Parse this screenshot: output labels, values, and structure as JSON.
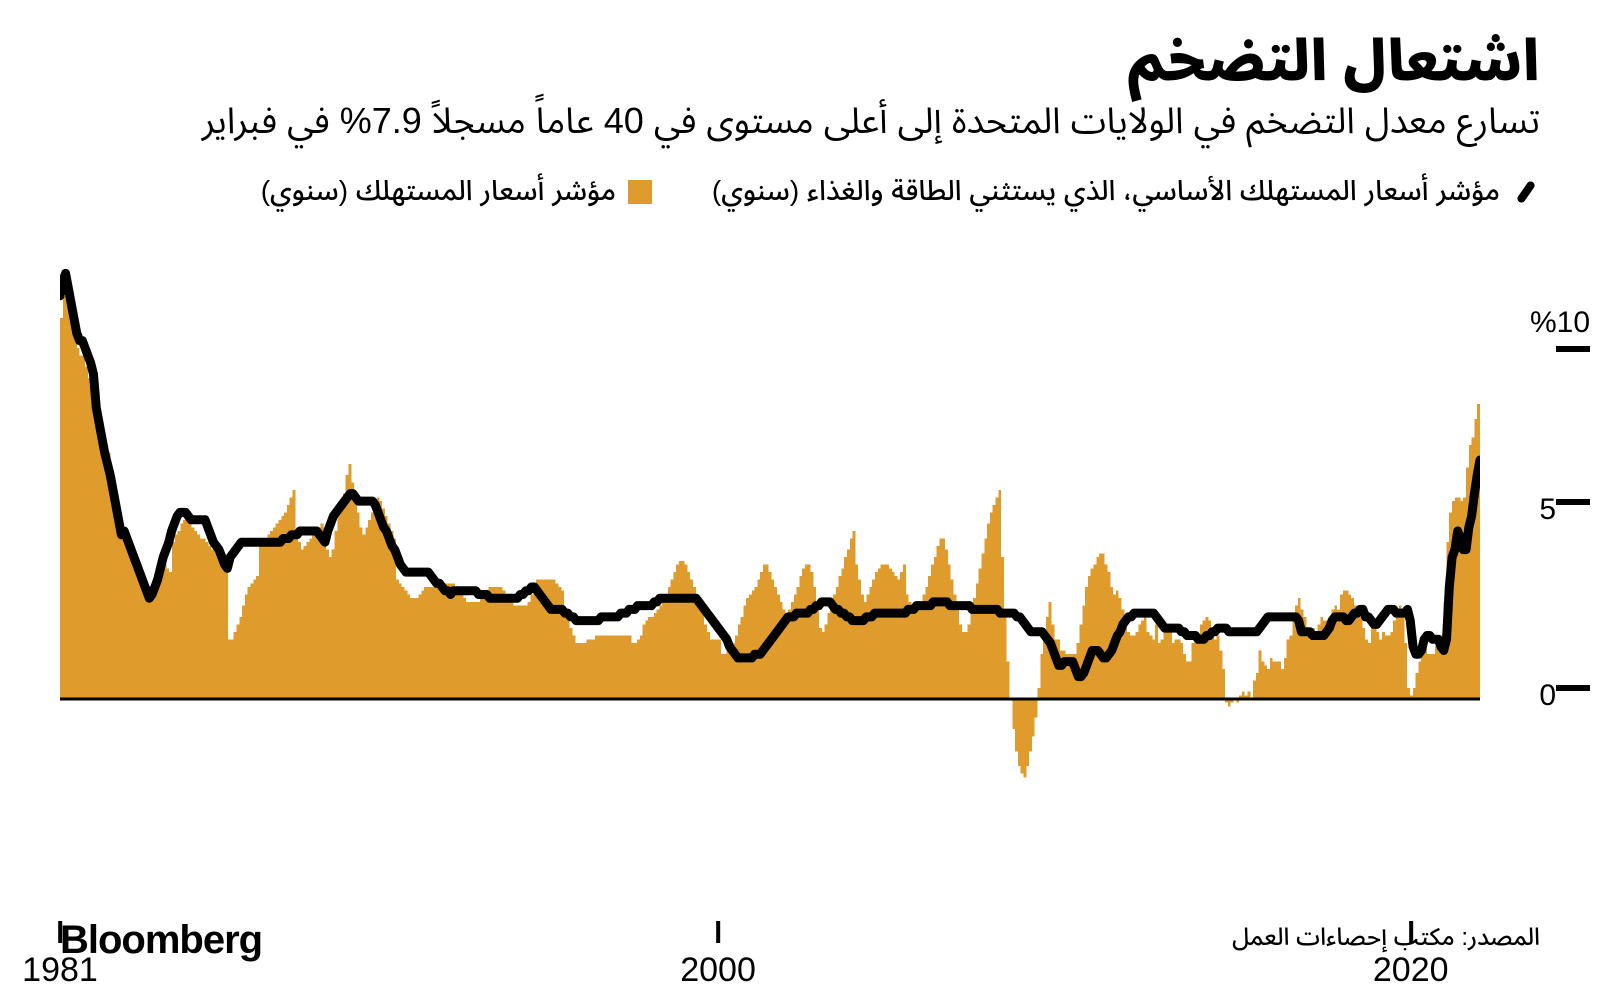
{
  "title": "اشتعال التضخم",
  "subtitle": "تسارع معدل التضخم في الولايات المتحدة إلى أعلى مستوى في 40 عاماً مسجلاً 7.9% في فبراير",
  "legend": {
    "series_line": "مؤشر أسعار المستهلك الأساسي، الذي يستثني الطاقة والغذاء (سنوي)",
    "series_bar": "مؤشر أسعار المستهلك (سنوي)"
  },
  "brand": "Bloomberg",
  "source": "المصدر: مكتب إحصاءات العمل",
  "chart": {
    "type": "bar+line",
    "x_start_year": 1981,
    "x_end_year": 2022,
    "x_ticks": [
      {
        "year": 1981,
        "label": "1981"
      },
      {
        "year": 2000,
        "label": "2000"
      },
      {
        "year": 2020,
        "label": "2020"
      }
    ],
    "ylim": [
      -3,
      12
    ],
    "y_ticks": [
      {
        "v": 10,
        "label": "%10"
      },
      {
        "v": 5,
        "label": "5"
      },
      {
        "v": 0,
        "label": "0"
      }
    ],
    "colors": {
      "bar": "#e09b2d",
      "line": "#000000",
      "baseline": "#000000",
      "background": "#ffffff"
    },
    "line_width": 9,
    "bar_gap_ratio": 0.0,
    "cpi_bars": [
      10.2,
      10.8,
      11.3,
      11.0,
      10.5,
      10.0,
      9.4,
      9.2,
      9.2,
      8.9,
      8.6,
      8.4,
      8.3,
      7.5,
      7.2,
      6.9,
      6.7,
      6.6,
      6.2,
      5.8,
      5.4,
      5.0,
      4.5,
      4.2,
      4.0,
      3.8,
      3.6,
      3.5,
      3.3,
      3.2,
      3.1,
      3.0,
      2.9,
      2.8,
      3.0,
      3.2,
      3.4,
      3.6,
      3.5,
      3.4,
      4.2,
      4.4,
      4.5,
      4.7,
      4.8,
      4.9,
      4.7,
      4.6,
      4.5,
      4.4,
      4.3,
      4.3,
      4.2,
      4.1,
      4.0,
      4.0,
      3.9,
      3.7,
      3.6,
      3.5,
      1.6,
      1.6,
      1.8,
      2.0,
      2.2,
      2.5,
      2.8,
      3.0,
      3.1,
      3.2,
      3.3,
      4.1,
      4.2,
      4.3,
      4.4,
      4.5,
      4.6,
      4.7,
      4.8,
      4.9,
      5.0,
      5.2,
      5.4,
      5.6,
      4.4,
      4.2,
      4.0,
      4.1,
      4.2,
      4.3,
      4.4,
      4.5,
      4.6,
      4.7,
      4.6,
      4.0,
      3.8,
      4.0,
      4.5,
      5.0,
      5.2,
      5.5,
      6.0,
      6.3,
      5.8,
      5.4,
      5.0,
      4.6,
      4.4,
      4.6,
      4.8,
      5.0,
      5.2,
      5.4,
      5.3,
      5.1,
      4.9,
      4.7,
      4.5,
      4.3,
      3.2,
      3.1,
      3.0,
      2.9,
      2.8,
      2.7,
      2.7,
      2.7,
      2.8,
      2.9,
      3.0,
      3.0,
      3.0,
      3.0,
      3.0,
      3.0,
      3.0,
      3.1,
      3.1,
      3.1,
      3.1,
      3.0,
      2.9,
      2.8,
      2.7,
      2.6,
      2.6,
      2.6,
      2.6,
      2.6,
      2.7,
      2.8,
      2.9,
      3.0,
      3.0,
      3.0,
      3.0,
      3.0,
      2.9,
      2.8,
      2.7,
      2.6,
      2.5,
      2.5,
      2.5,
      2.5,
      2.5,
      2.6,
      2.8,
      3.0,
      3.2,
      3.2,
      3.2,
      3.2,
      3.2,
      3.2,
      3.2,
      3.1,
      3.0,
      2.9,
      2.4,
      2.2,
      1.9,
      1.7,
      1.5,
      1.5,
      1.5,
      1.5,
      1.6,
      1.6,
      1.6,
      1.7,
      1.7,
      1.7,
      1.7,
      1.7,
      1.7,
      1.7,
      1.7,
      1.7,
      1.7,
      1.7,
      1.7,
      1.7,
      1.5,
      1.5,
      1.6,
      1.7,
      2.0,
      2.1,
      2.2,
      2.2,
      2.3,
      2.4,
      2.5,
      2.6,
      2.8,
      3.0,
      3.2,
      3.4,
      3.6,
      3.7,
      3.7,
      3.6,
      3.4,
      3.2,
      3.0,
      2.8,
      2.4,
      2.3,
      2.0,
      1.8,
      1.6,
      1.6,
      1.6,
      1.6,
      1.2,
      1.2,
      1.3,
      1.4,
      1.5,
      1.7,
      2.0,
      2.2,
      2.5,
      2.7,
      2.8,
      2.9,
      3.0,
      3.2,
      3.4,
      3.6,
      3.6,
      3.4,
      3.2,
      3.0,
      2.8,
      2.6,
      2.4,
      2.2,
      2.4,
      2.6,
      2.8,
      3.0,
      3.3,
      3.5,
      3.6,
      3.6,
      3.4,
      3.0,
      2.5,
      1.9,
      1.8,
      2.0,
      2.3,
      2.5,
      2.8,
      3.0,
      3.3,
      3.5,
      3.8,
      4.0,
      4.3,
      4.5,
      3.6,
      3.2,
      2.8,
      2.6,
      2.8,
      3.0,
      3.2,
      3.4,
      3.5,
      3.6,
      3.6,
      3.6,
      3.5,
      3.4,
      3.3,
      3.2,
      3.4,
      3.6,
      2.8,
      2.6,
      2.5,
      2.5,
      2.5,
      2.6,
      2.8,
      3.0,
      3.3,
      3.6,
      3.8,
      4.1,
      4.3,
      4.3,
      4.0,
      3.6,
      3.2,
      2.8,
      2.4,
      2.0,
      1.8,
      1.8,
      2.0,
      2.3,
      2.7,
      3.1,
      3.5,
      3.9,
      4.3,
      4.7,
      5.0,
      5.2,
      5.4,
      5.6,
      3.8,
      2.4,
      1.0,
      0.0,
      -0.8,
      -1.4,
      -1.8,
      -2.0,
      -2.1,
      -1.8,
      -1.4,
      -1.0,
      -0.5,
      0.3,
      1.2,
      1.8,
      2.2,
      2.6,
      2.0,
      1.6,
      1.6,
      1.3,
      1.3,
      1.2,
      1.2,
      1.2,
      1.2,
      1.5,
      2.0,
      2.5,
      3.0,
      3.3,
      3.5,
      3.6,
      3.8,
      3.9,
      3.9,
      3.6,
      3.4,
      3.0,
      2.8,
      2.9,
      2.7,
      2.4,
      2.0,
      1.8,
      1.7,
      1.7,
      1.8,
      2.0,
      2.1,
      2.2,
      1.8,
      1.7,
      1.6,
      2.0,
      1.5,
      1.6,
      1.8,
      2.0,
      1.9,
      1.5,
      1.6,
      1.6,
      1.5,
      1.2,
      1.0,
      1.0,
      1.5,
      1.6,
      1.7,
      2.0,
      2.1,
      2.2,
      2.1,
      1.7,
      1.6,
      1.7,
      1.3,
      0.8,
      -0.1,
      -0.2,
      -0.1,
      0.0,
      -0.1,
      0.1,
      0.2,
      0.1,
      0.2,
      0.0,
      0.5,
      0.7,
      1.3,
      1.0,
      0.9,
      0.8,
      1.1,
      1.0,
      1.0,
      1.0,
      0.8,
      1.1,
      1.6,
      1.7,
      2.1,
      2.5,
      2.7,
      2.4,
      2.2,
      1.9,
      1.6,
      1.9,
      1.7,
      2.0,
      2.2,
      2.1,
      2.1,
      2.2,
      2.4,
      2.5,
      2.4,
      2.8,
      2.9,
      2.9,
      2.8,
      2.7,
      2.5,
      2.3,
      2.2,
      1.9,
      1.6,
      1.5,
      2.0,
      1.9,
      1.8,
      1.6,
      1.8,
      1.7,
      1.7,
      1.8,
      2.1,
      2.3,
      2.5,
      2.3,
      1.5,
      0.3,
      0.1,
      0.3,
      0.7,
      1.0,
      1.3,
      1.4,
      1.2,
      1.2,
      1.2,
      1.4,
      1.4,
      1.7,
      2.6,
      4.2,
      5.0,
      5.3,
      5.4,
      5.4,
      5.3,
      5.4,
      6.2,
      6.8,
      7.0,
      7.5,
      7.9
    ],
    "core_line": [
      10.8,
      11.2,
      11.4,
      11.0,
      10.6,
      10.2,
      9.8,
      9.6,
      9.6,
      9.4,
      9.2,
      9.0,
      8.7,
      7.8,
      7.4,
      7.0,
      6.6,
      6.3,
      6.0,
      5.6,
      5.2,
      4.8,
      4.4,
      4.5,
      4.3,
      4.1,
      3.9,
      3.7,
      3.5,
      3.3,
      3.1,
      2.9,
      2.7,
      2.8,
      3.0,
      3.2,
      3.5,
      3.8,
      4.0,
      4.2,
      4.5,
      4.7,
      4.9,
      5.0,
      5.0,
      5.0,
      4.9,
      4.8,
      4.8,
      4.8,
      4.8,
      4.8,
      4.8,
      4.6,
      4.4,
      4.2,
      4.1,
      4.0,
      3.8,
      3.6,
      3.5,
      3.8,
      3.9,
      4.0,
      4.1,
      4.2,
      4.2,
      4.2,
      4.2,
      4.2,
      4.2,
      4.2,
      4.2,
      4.2,
      4.2,
      4.2,
      4.2,
      4.2,
      4.2,
      4.2,
      4.3,
      4.3,
      4.3,
      4.4,
      4.4,
      4.4,
      4.5,
      4.5,
      4.5,
      4.5,
      4.5,
      4.5,
      4.5,
      4.4,
      4.3,
      4.2,
      4.5,
      4.7,
      4.9,
      5.0,
      5.1,
      5.2,
      5.3,
      5.4,
      5.5,
      5.5,
      5.4,
      5.3,
      5.3,
      5.3,
      5.3,
      5.3,
      5.3,
      5.2,
      5.0,
      4.8,
      4.6,
      4.5,
      4.3,
      4.1,
      4.0,
      3.8,
      3.6,
      3.5,
      3.4,
      3.4,
      3.4,
      3.4,
      3.4,
      3.4,
      3.4,
      3.4,
      3.4,
      3.3,
      3.2,
      3.1,
      3.1,
      3.0,
      2.9,
      2.9,
      2.8,
      2.9,
      2.9,
      2.9,
      2.9,
      2.9,
      2.9,
      2.9,
      2.9,
      2.9,
      2.8,
      2.8,
      2.8,
      2.8,
      2.7,
      2.7,
      2.7,
      2.7,
      2.7,
      2.7,
      2.7,
      2.7,
      2.7,
      2.7,
      2.7,
      2.8,
      2.8,
      2.9,
      2.9,
      3.0,
      3.0,
      2.9,
      2.8,
      2.7,
      2.6,
      2.5,
      2.4,
      2.4,
      2.4,
      2.4,
      2.4,
      2.3,
      2.3,
      2.2,
      2.2,
      2.1,
      2.1,
      2.1,
      2.1,
      2.1,
      2.1,
      2.1,
      2.1,
      2.1,
      2.2,
      2.2,
      2.2,
      2.2,
      2.2,
      2.2,
      2.2,
      2.3,
      2.3,
      2.3,
      2.4,
      2.4,
      2.4,
      2.5,
      2.5,
      2.5,
      2.5,
      2.5,
      2.5,
      2.6,
      2.6,
      2.7,
      2.7,
      2.7,
      2.7,
      2.7,
      2.7,
      2.7,
      2.7,
      2.7,
      2.7,
      2.7,
      2.7,
      2.7,
      2.7,
      2.6,
      2.5,
      2.4,
      2.3,
      2.2,
      2.1,
      2.0,
      1.9,
      1.8,
      1.7,
      1.6,
      1.4,
      1.3,
      1.2,
      1.1,
      1.1,
      1.1,
      1.1,
      1.1,
      1.1,
      1.2,
      1.2,
      1.2,
      1.3,
      1.4,
      1.5,
      1.6,
      1.7,
      1.8,
      1.9,
      2.0,
      2.1,
      2.2,
      2.2,
      2.2,
      2.3,
      2.3,
      2.3,
      2.3,
      2.3,
      2.4,
      2.4,
      2.5,
      2.5,
      2.6,
      2.6,
      2.6,
      2.6,
      2.5,
      2.4,
      2.4,
      2.3,
      2.3,
      2.2,
      2.2,
      2.1,
      2.1,
      2.1,
      2.1,
      2.1,
      2.2,
      2.2,
      2.2,
      2.3,
      2.3,
      2.3,
      2.3,
      2.3,
      2.3,
      2.3,
      2.3,
      2.3,
      2.3,
      2.3,
      2.3,
      2.4,
      2.4,
      2.4,
      2.5,
      2.5,
      2.5,
      2.5,
      2.5,
      2.5,
      2.6,
      2.6,
      2.6,
      2.6,
      2.6,
      2.6,
      2.5,
      2.5,
      2.5,
      2.5,
      2.5,
      2.5,
      2.5,
      2.5,
      2.4,
      2.4,
      2.4,
      2.4,
      2.4,
      2.4,
      2.4,
      2.4,
      2.4,
      2.4,
      2.3,
      2.3,
      2.3,
      2.3,
      2.3,
      2.3,
      2.2,
      2.2,
      2.1,
      2.0,
      1.9,
      1.8,
      1.8,
      1.8,
      1.8,
      1.8,
      1.7,
      1.6,
      1.5,
      1.3,
      1.1,
      0.9,
      0.9,
      1.0,
      1.0,
      1.0,
      1.0,
      0.8,
      0.6,
      0.6,
      0.7,
      0.9,
      1.1,
      1.3,
      1.3,
      1.3,
      1.2,
      1.1,
      1.1,
      1.2,
      1.3,
      1.5,
      1.7,
      1.8,
      2.0,
      2.1,
      2.2,
      2.2,
      2.3,
      2.3,
      2.3,
      2.3,
      2.3,
      2.3,
      2.3,
      2.3,
      2.2,
      2.1,
      2.0,
      1.9,
      1.9,
      1.9,
      1.9,
      1.9,
      1.9,
      1.8,
      1.8,
      1.7,
      1.7,
      1.7,
      1.7,
      1.6,
      1.6,
      1.6,
      1.7,
      1.7,
      1.8,
      1.8,
      1.9,
      1.9,
      1.9,
      1.9,
      1.8,
      1.8,
      1.8,
      1.8,
      1.8,
      1.8,
      1.8,
      1.8,
      1.8,
      1.8,
      1.8,
      1.9,
      2.0,
      2.1,
      2.2,
      2.2,
      2.2,
      2.2,
      2.2,
      2.2,
      2.2,
      2.2,
      2.2,
      2.2,
      2.2,
      2.1,
      1.8,
      1.8,
      1.8,
      1.8,
      1.7,
      1.7,
      1.7,
      1.7,
      1.7,
      1.8,
      1.9,
      2.1,
      2.2,
      2.2,
      2.2,
      2.2,
      2.1,
      2.1,
      2.2,
      2.3,
      2.3,
      2.4,
      2.4,
      2.2,
      2.2,
      2.1,
      2.0,
      2.0,
      2.1,
      2.2,
      2.3,
      2.4,
      2.4,
      2.4,
      2.3,
      2.3,
      2.3,
      2.3,
      2.4,
      2.1,
      1.4,
      1.2,
      1.2,
      1.3,
      1.6,
      1.7,
      1.7,
      1.6,
      1.6,
      1.6,
      1.4,
      1.3,
      1.6,
      3.0,
      3.8,
      4.0,
      4.5,
      4.3,
      4.0,
      4.0,
      4.6,
      4.9,
      5.5,
      6.0,
      6.4
    ]
  }
}
